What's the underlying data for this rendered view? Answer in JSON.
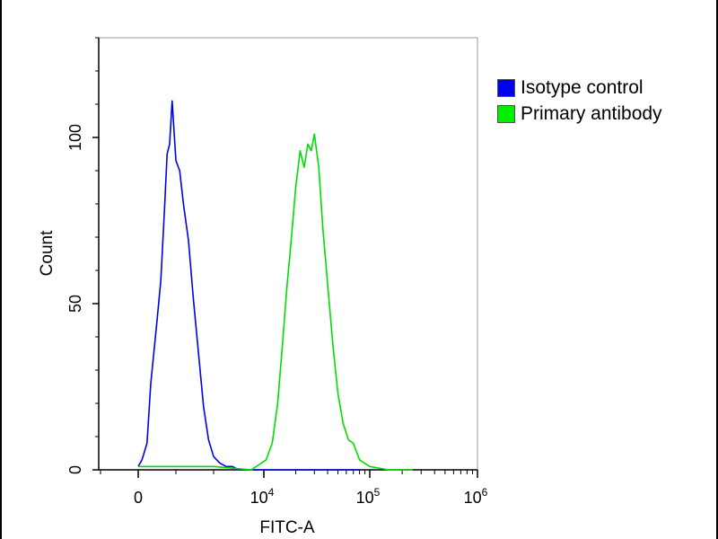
{
  "chart_data": {
    "type": "line",
    "title": "",
    "xlabel": "FITC-A",
    "ylabel": "Count",
    "ylim": [
      0,
      130
    ],
    "yticks": [
      {
        "value": 0,
        "label": "0"
      },
      {
        "value": 50,
        "label": "50"
      },
      {
        "value": 100,
        "label": "100"
      }
    ],
    "xticks": [
      {
        "value": 0,
        "label": "0"
      },
      {
        "value": 10000,
        "base": "10",
        "exp": "4"
      },
      {
        "value": 100000,
        "base": "10",
        "exp": "5"
      },
      {
        "value": 1000000,
        "base": "10",
        "exp": "6"
      }
    ],
    "grid": false,
    "legend_position": "right",
    "series": [
      {
        "name": "Isotype control",
        "color": "#0000ee",
        "x": [
          0,
          300,
          700,
          1000,
          1500,
          1800,
          2100,
          2300,
          2500,
          2700,
          3000,
          3300,
          3600,
          4000,
          4400,
          4800,
          5200,
          5600,
          6000,
          6500,
          7000,
          7500,
          8000,
          9000,
          10000,
          14000,
          25000,
          45000,
          80000
        ],
        "values": [
          1,
          3,
          8,
          26,
          45,
          57,
          79,
          95,
          98,
          111,
          93,
          90,
          80,
          69,
          51,
          35,
          19,
          9,
          4,
          2,
          1,
          1,
          0,
          0,
          0,
          0,
          0,
          0,
          0
        ]
      },
      {
        "name": "Primary antibody",
        "color": "#00dd00",
        "x": [
          0,
          1000,
          3000,
          6000,
          9000,
          10500,
          12000,
          13500,
          15000,
          16500,
          18000,
          20000,
          22000,
          24000,
          26000,
          28000,
          30000,
          33000,
          36000,
          40000,
          45000,
          50000,
          56000,
          63000,
          70000,
          80000,
          100000,
          150000,
          250000
        ],
        "values": [
          1,
          1,
          1,
          1,
          0,
          3,
          8,
          20,
          38,
          55,
          68,
          85,
          96,
          91,
          98,
          96,
          101,
          91,
          73,
          56,
          37,
          23,
          14,
          9,
          8,
          3,
          1,
          0,
          0
        ]
      }
    ]
  }
}
